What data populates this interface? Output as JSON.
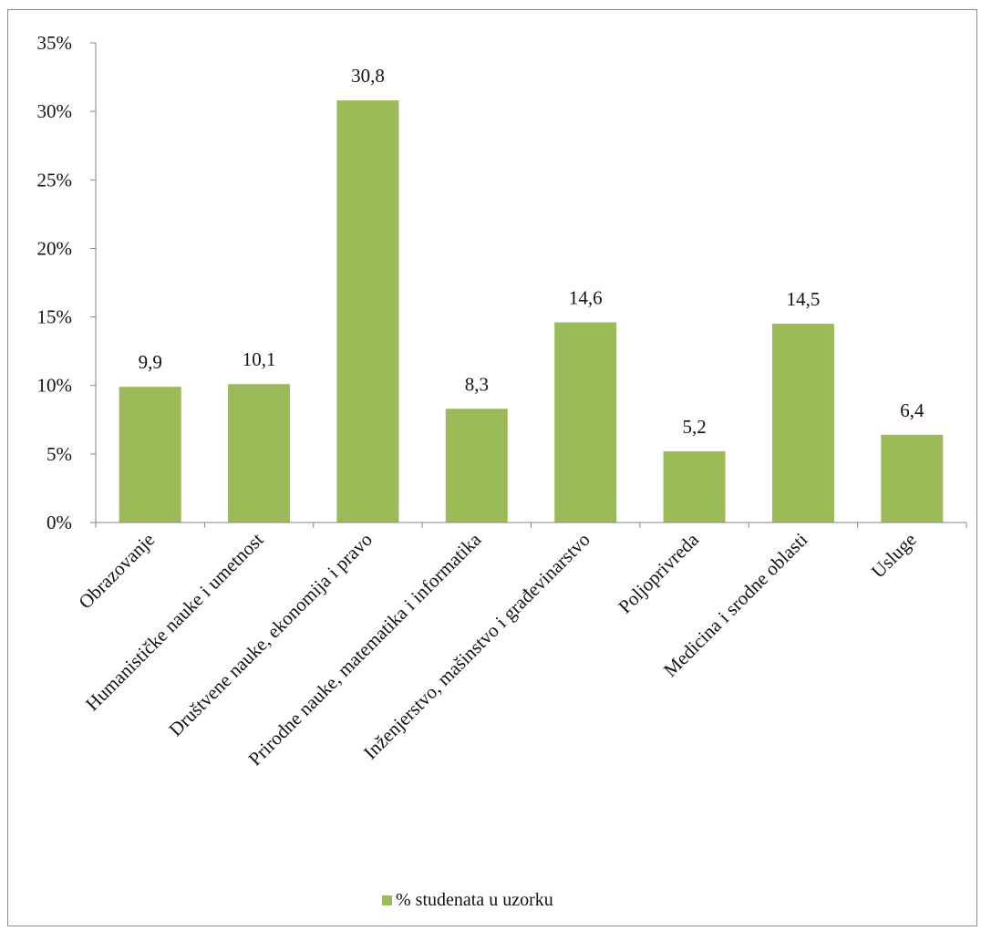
{
  "chart_data": {
    "type": "bar",
    "categories": [
      "Obrazovanje",
      "Humanističke nauke i umetnost",
      "Društvene nauke, ekonomija i pravo",
      "Prirodne nauke, matematika i informatika",
      "Inženjerstvo, mašinstvo i građevinarstvo",
      "Poljoprivreda",
      "Medicina i srodne oblasti",
      "Usluge"
    ],
    "series": [
      {
        "name": "% studenata u uzorku",
        "values": [
          9.9,
          10.1,
          30.8,
          8.3,
          14.6,
          5.2,
          14.5,
          6.4
        ],
        "data_labels": [
          "9,9",
          "10,1",
          "30,8",
          "8,3",
          "14,6",
          "5,2",
          "14,5",
          "6,4"
        ],
        "color": "#9bbb59"
      }
    ],
    "y_ticks": [
      "0%",
      "5%",
      "10%",
      "15%",
      "20%",
      "25%",
      "30%",
      "35%"
    ],
    "ylim": [
      0,
      35
    ],
    "grid": false,
    "legend_position": "bottom",
    "title": "",
    "xlabel": "",
    "ylabel": ""
  }
}
